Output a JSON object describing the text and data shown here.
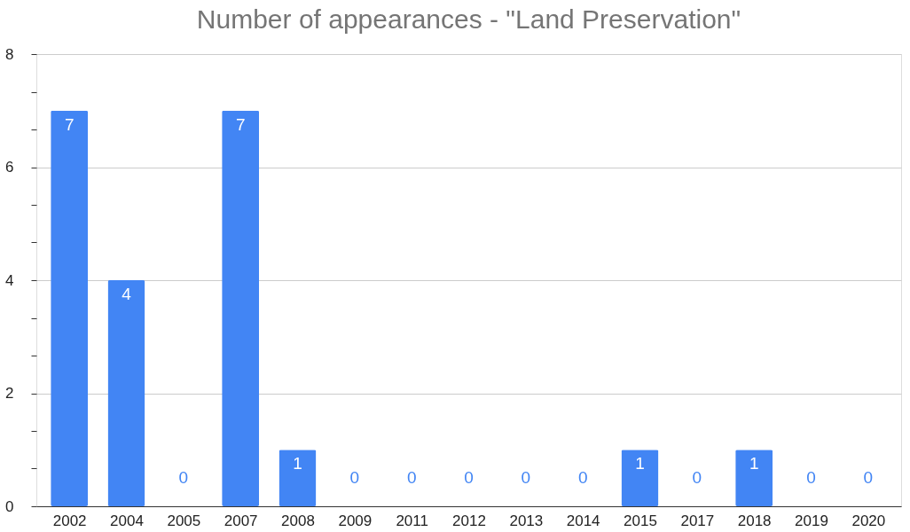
{
  "chart_data": {
    "type": "bar",
    "title": "Number of appearances - \"Land Preservation\"",
    "categories": [
      "2002",
      "2004",
      "2005",
      "2007",
      "2008",
      "2009",
      "2011",
      "2012",
      "2013",
      "2014",
      "2015",
      "2017",
      "2018",
      "2019",
      "2020"
    ],
    "values": [
      7,
      4,
      0,
      7,
      1,
      0,
      0,
      0,
      0,
      0,
      1,
      0,
      1,
      0,
      0
    ],
    "color": "#4285f4",
    "ylim": [
      0,
      8
    ],
    "yticks": [
      0,
      {
        "value": 0.67,
        "label": null
      },
      {
        "value": 1.33,
        "label": null
      },
      2,
      {
        "value": 2.67,
        "label": null
      },
      {
        "value": 3.33,
        "label": null
      },
      4,
      {
        "value": 4.67,
        "label": null
      },
      {
        "value": 5.33,
        "label": null
      },
      6,
      {
        "value": 6.67,
        "label": null
      },
      {
        "value": 7.33,
        "label": null
      },
      8
    ],
    "grid": "y",
    "data_labels": true
  }
}
